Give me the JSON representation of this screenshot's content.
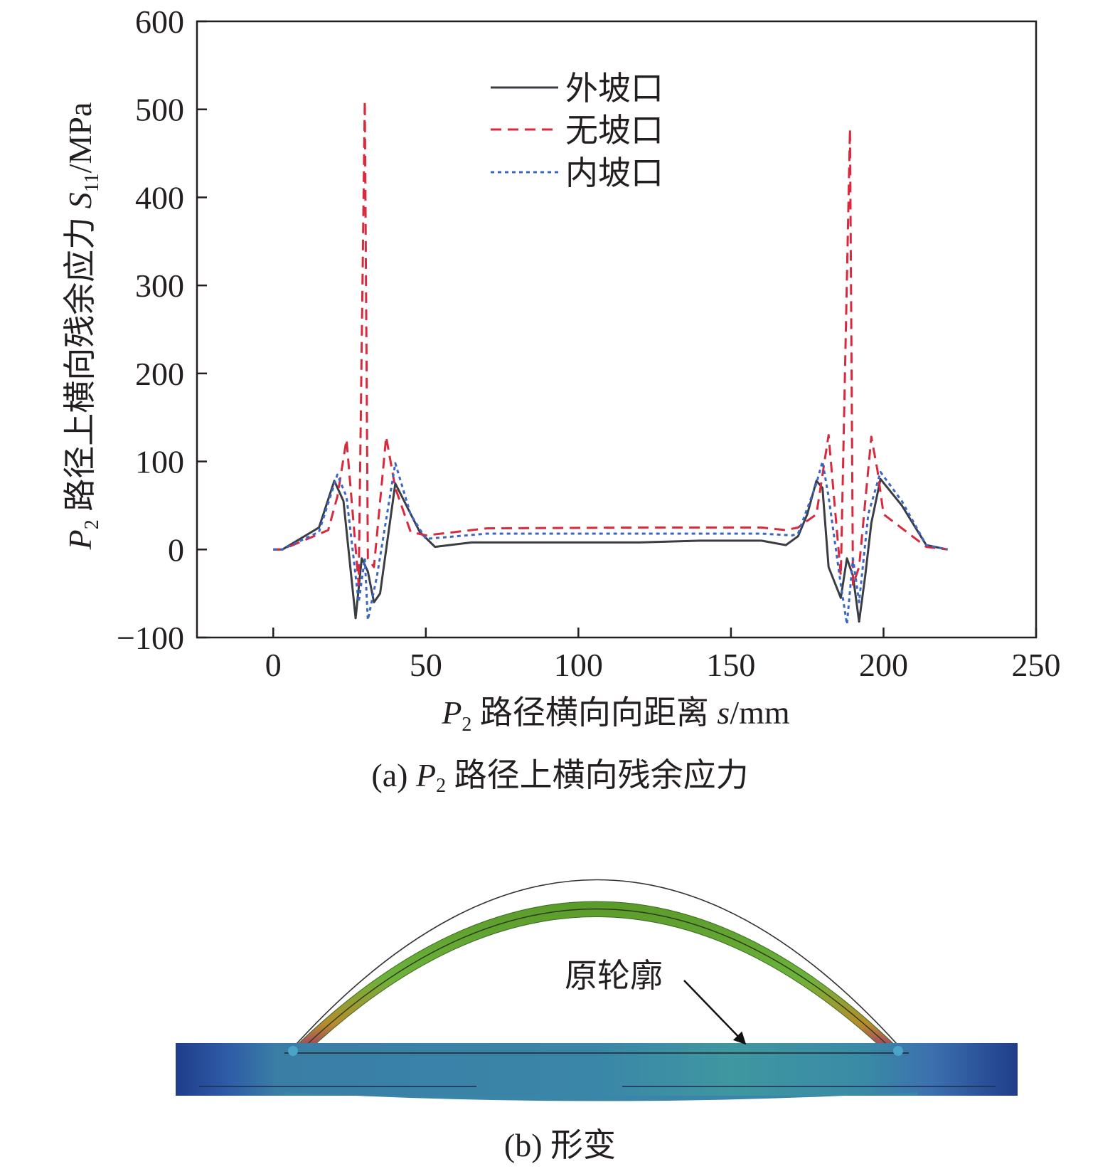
{
  "figure_a": {
    "caption_prefix": "(a) ",
    "caption_symbol": "P",
    "caption_subscript": "2",
    "caption_suffix": " 路径上横向残余应力"
  },
  "figure_b": {
    "caption": "(b) 形变",
    "annotation": "原轮廓"
  },
  "colors": {
    "outer": "#3a3d44",
    "none": "#d9293d",
    "inner": "#3a66c4",
    "axis": "#231f20"
  },
  "chart_data": {
    "type": "line",
    "xlim": [
      -25,
      250
    ],
    "ylim": [
      -100,
      600
    ],
    "x_ticks": [
      0,
      50,
      100,
      150,
      200,
      250
    ],
    "y_ticks": [
      -100,
      0,
      100,
      200,
      300,
      400,
      500,
      600
    ],
    "x_tick_labels": [
      "0",
      "50",
      "100",
      "150",
      "200",
      "250"
    ],
    "y_tick_labels": [
      "−100",
      "0",
      "100",
      "200",
      "300",
      "400",
      "500",
      "600"
    ],
    "xlabel": {
      "symbol": "P",
      "sub": "2",
      "text": " 路径横向向距离 ",
      "var": "s",
      "unit": "/mm"
    },
    "ylabel": {
      "symbol": "P",
      "sub": "2",
      "text": " 路径上横向残余应力 ",
      "var": "S",
      "varsub": "11",
      "unit": "/MPa"
    },
    "legend_position": "top-center",
    "grid": false,
    "series": [
      {
        "name": "外坡口",
        "style": "solid",
        "points": [
          [
            0,
            0
          ],
          [
            3,
            0
          ],
          [
            15,
            25
          ],
          [
            20,
            78
          ],
          [
            23,
            55
          ],
          [
            27,
            -78
          ],
          [
            29,
            -10
          ],
          [
            31,
            -25
          ],
          [
            33,
            -60
          ],
          [
            35,
            -50
          ],
          [
            40,
            75
          ],
          [
            48,
            20
          ],
          [
            53,
            3
          ],
          [
            65,
            8
          ],
          [
            90,
            8
          ],
          [
            120,
            8
          ],
          [
            140,
            10
          ],
          [
            160,
            10
          ],
          [
            168,
            5
          ],
          [
            172,
            15
          ],
          [
            175,
            40
          ],
          [
            178,
            78
          ],
          [
            180,
            70
          ],
          [
            182,
            -20
          ],
          [
            186,
            -55
          ],
          [
            188,
            -10
          ],
          [
            190,
            -30
          ],
          [
            192,
            -82
          ],
          [
            194,
            -30
          ],
          [
            196,
            30
          ],
          [
            199,
            80
          ],
          [
            206,
            50
          ],
          [
            214,
            5
          ],
          [
            221,
            0
          ]
        ]
      },
      {
        "name": "无坡口",
        "style": "dashed",
        "points": [
          [
            0,
            0
          ],
          [
            3,
            0
          ],
          [
            18,
            22
          ],
          [
            21,
            60
          ],
          [
            24,
            125
          ],
          [
            28,
            -40
          ],
          [
            30,
            510
          ],
          [
            31,
            -10
          ],
          [
            33,
            -20
          ],
          [
            37,
            128
          ],
          [
            40,
            70
          ],
          [
            45,
            20
          ],
          [
            50,
            16
          ],
          [
            70,
            24
          ],
          [
            120,
            25
          ],
          [
            160,
            25
          ],
          [
            168,
            22
          ],
          [
            172,
            25
          ],
          [
            178,
            40
          ],
          [
            182,
            130
          ],
          [
            186,
            -30
          ],
          [
            189,
            478
          ],
          [
            190,
            -40
          ],
          [
            192,
            -20
          ],
          [
            196,
            128
          ],
          [
            198,
            90
          ],
          [
            200,
            40
          ],
          [
            214,
            3
          ],
          [
            221,
            0
          ]
        ]
      },
      {
        "name": "内坡口",
        "style": "dotted",
        "points": [
          [
            0,
            0
          ],
          [
            3,
            0
          ],
          [
            15,
            20
          ],
          [
            21,
            85
          ],
          [
            24,
            60
          ],
          [
            28,
            -60
          ],
          [
            30,
            -10
          ],
          [
            31,
            -80
          ],
          [
            34,
            -30
          ],
          [
            40,
            98
          ],
          [
            45,
            40
          ],
          [
            50,
            12
          ],
          [
            70,
            18
          ],
          [
            120,
            18
          ],
          [
            160,
            18
          ],
          [
            170,
            16
          ],
          [
            172,
            18
          ],
          [
            178,
            75
          ],
          [
            180,
            100
          ],
          [
            182,
            60
          ],
          [
            186,
            -40
          ],
          [
            188,
            -85
          ],
          [
            190,
            -10
          ],
          [
            192,
            -60
          ],
          [
            195,
            40
          ],
          [
            199,
            88
          ],
          [
            206,
            55
          ],
          [
            214,
            5
          ],
          [
            221,
            0
          ]
        ]
      }
    ]
  }
}
